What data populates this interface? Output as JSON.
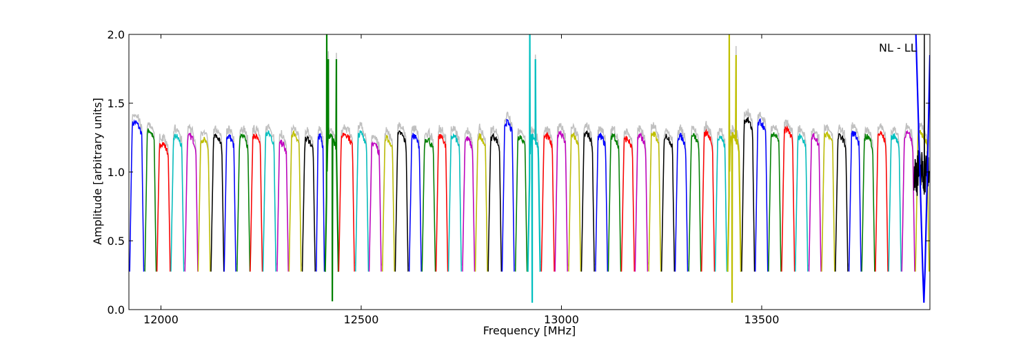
{
  "chart_data": {
    "type": "line",
    "title": "",
    "xlabel": "Frequency [MHz]",
    "ylabel": "Amplitude [arbitrary units]",
    "xlim": [
      11920,
      13920
    ],
    "ylim": [
      0.0,
      2.0
    ],
    "grid": false,
    "annotation": "NL - LL",
    "annotation_position": "top-right",
    "x_ticks": [
      12000,
      12500,
      13000,
      13500
    ],
    "x_tick_labels": [
      "12000",
      "12500",
      "13000",
      "13500"
    ],
    "y_ticks": [
      0.0,
      0.5,
      1.0,
      1.5,
      2.0
    ],
    "y_tick_labels": [
      "0.0",
      "0.5",
      "1.0",
      "1.5",
      "2.0"
    ],
    "series_colors": [
      "#0000ff",
      "#008000",
      "#ff0000",
      "#00bfbf",
      "#bf00bf",
      "#bfbf00",
      "#000000"
    ],
    "background_color": "#c0c0c0",
    "channels": [
      {
        "start": 11922,
        "end": 11957,
        "level": 1.3,
        "color": "#0000ff"
      },
      {
        "start": 11960,
        "end": 11988,
        "level": 1.24,
        "color": "#008000"
      },
      {
        "start": 11990,
        "end": 12023,
        "level": 1.15,
        "color": "#ff0000"
      },
      {
        "start": 12025,
        "end": 12057,
        "level": 1.2,
        "color": "#00bfbf"
      },
      {
        "start": 12060,
        "end": 12092,
        "level": 1.2,
        "color": "#bf00bf"
      },
      {
        "start": 12093,
        "end": 12123,
        "level": 1.18,
        "color": "#bfbf00"
      },
      {
        "start": 12125,
        "end": 12157,
        "level": 1.2,
        "color": "#000000"
      },
      {
        "start": 12158,
        "end": 12187,
        "level": 1.2,
        "color": "#0000ff"
      },
      {
        "start": 12190,
        "end": 12222,
        "level": 1.2,
        "color": "#008000"
      },
      {
        "start": 12223,
        "end": 12253,
        "level": 1.2,
        "color": "#ff0000"
      },
      {
        "start": 12255,
        "end": 12287,
        "level": 1.22,
        "color": "#00bfbf"
      },
      {
        "start": 12290,
        "end": 12318,
        "level": 1.15,
        "color": "#bf00bf"
      },
      {
        "start": 12320,
        "end": 12350,
        "level": 1.22,
        "color": "#bfbf00"
      },
      {
        "start": 12353,
        "end": 12385,
        "level": 1.18,
        "color": "#000000"
      },
      {
        "start": 12388,
        "end": 12408,
        "level": 1.2,
        "color": "#0000ff"
      },
      {
        "start": 12410,
        "end": 12443,
        "level": 1.2,
        "color": "#008000",
        "special": [
          {
            "x": 12414,
            "y": 2.0
          },
          {
            "x": 12418,
            "y": 1.82
          },
          {
            "x": 12428,
            "y": 0.06
          },
          {
            "x": 12438,
            "y": 1.82
          }
        ]
      },
      {
        "start": 12444,
        "end": 12483,
        "level": 1.22,
        "color": "#ff0000"
      },
      {
        "start": 12486,
        "end": 12518,
        "level": 1.22,
        "color": "#00bfbf"
      },
      {
        "start": 12520,
        "end": 12550,
        "level": 1.15,
        "color": "#bf00bf"
      },
      {
        "start": 12553,
        "end": 12583,
        "level": 1.18,
        "color": "#bfbf00"
      },
      {
        "start": 12585,
        "end": 12617,
        "level": 1.22,
        "color": "#000000"
      },
      {
        "start": 12620,
        "end": 12650,
        "level": 1.2,
        "color": "#0000ff"
      },
      {
        "start": 12652,
        "end": 12685,
        "level": 1.18,
        "color": "#008000"
      },
      {
        "start": 12687,
        "end": 12716,
        "level": 1.2,
        "color": "#ff0000"
      },
      {
        "start": 12718,
        "end": 12750,
        "level": 1.2,
        "color": "#00bfbf"
      },
      {
        "start": 12753,
        "end": 12783,
        "level": 1.18,
        "color": "#bf00bf"
      },
      {
        "start": 12785,
        "end": 12815,
        "level": 1.2,
        "color": "#bfbf00"
      },
      {
        "start": 12817,
        "end": 12850,
        "level": 1.2,
        "color": "#000000"
      },
      {
        "start": 12852,
        "end": 12882,
        "level": 1.3,
        "color": "#0000ff"
      },
      {
        "start": 12885,
        "end": 12914,
        "level": 1.2,
        "color": "#008000"
      },
      {
        "start": 12916,
        "end": 12947,
        "level": 1.2,
        "color": "#00bfbf",
        "special": [
          {
            "x": 12921,
            "y": 2.0
          },
          {
            "x": 12927,
            "y": 0.05
          },
          {
            "x": 12935,
            "y": 1.82
          }
        ]
      },
      {
        "start": 12950,
        "end": 12982,
        "level": 1.2,
        "color": "#ff0000"
      },
      {
        "start": 12984,
        "end": 13015,
        "level": 1.22,
        "color": "#bf00bf"
      },
      {
        "start": 13018,
        "end": 13048,
        "level": 1.2,
        "color": "#bfbf00"
      },
      {
        "start": 13050,
        "end": 13082,
        "level": 1.22,
        "color": "#000000"
      },
      {
        "start": 13085,
        "end": 13115,
        "level": 1.2,
        "color": "#0000ff"
      },
      {
        "start": 13117,
        "end": 13148,
        "level": 1.2,
        "color": "#008000"
      },
      {
        "start": 13150,
        "end": 13182,
        "level": 1.18,
        "color": "#ff0000"
      },
      {
        "start": 13184,
        "end": 13215,
        "level": 1.2,
        "color": "#bf00bf"
      },
      {
        "start": 13218,
        "end": 13248,
        "level": 1.22,
        "color": "#bfbf00"
      },
      {
        "start": 13250,
        "end": 13282,
        "level": 1.2,
        "color": "#000000"
      },
      {
        "start": 13284,
        "end": 13315,
        "level": 1.2,
        "color": "#0000ff"
      },
      {
        "start": 13318,
        "end": 13348,
        "level": 1.2,
        "color": "#008000"
      },
      {
        "start": 13350,
        "end": 13382,
        "level": 1.22,
        "color": "#ff0000"
      },
      {
        "start": 13384,
        "end": 13413,
        "level": 1.2,
        "color": "#00bfbf"
      },
      {
        "start": 13415,
        "end": 13448,
        "level": 1.2,
        "color": "#bfbf00",
        "special": [
          {
            "x": 13419,
            "y": 2.0
          },
          {
            "x": 13426,
            "y": 0.05
          },
          {
            "x": 13436,
            "y": 1.85
          }
        ]
      },
      {
        "start": 13450,
        "end": 13482,
        "level": 1.32,
        "color": "#000000"
      },
      {
        "start": 13484,
        "end": 13515,
        "level": 1.3,
        "color": "#0000ff"
      },
      {
        "start": 13517,
        "end": 13548,
        "level": 1.22,
        "color": "#008000"
      },
      {
        "start": 13550,
        "end": 13582,
        "level": 1.25,
        "color": "#ff0000"
      },
      {
        "start": 13584,
        "end": 13615,
        "level": 1.2,
        "color": "#00bfbf"
      },
      {
        "start": 13618,
        "end": 13648,
        "level": 1.2,
        "color": "#bf00bf"
      },
      {
        "start": 13650,
        "end": 13682,
        "level": 1.22,
        "color": "#bfbf00"
      },
      {
        "start": 13684,
        "end": 13715,
        "level": 1.2,
        "color": "#000000"
      },
      {
        "start": 13718,
        "end": 13748,
        "level": 1.22,
        "color": "#0000ff"
      },
      {
        "start": 13750,
        "end": 13782,
        "level": 1.2,
        "color": "#008000"
      },
      {
        "start": 13784,
        "end": 13815,
        "level": 1.22,
        "color": "#ff0000"
      },
      {
        "start": 13817,
        "end": 13848,
        "level": 1.2,
        "color": "#00bfbf"
      },
      {
        "start": 13850,
        "end": 13882,
        "level": 1.22,
        "color": "#bf00bf"
      },
      {
        "start": 13884,
        "end": 13918,
        "level": 1.22,
        "color": "#bfbf00"
      }
    ],
    "noisy_segment": {
      "start": 13880,
      "end": 13918,
      "level": 1.0,
      "color": "#000000",
      "spike_x": 13906,
      "spike_y": 2.0
    },
    "edge_spike": {
      "start": 13885,
      "end": 13920,
      "color": "#0000ff",
      "min_x": 13905,
      "min_y": 0.05
    }
  }
}
